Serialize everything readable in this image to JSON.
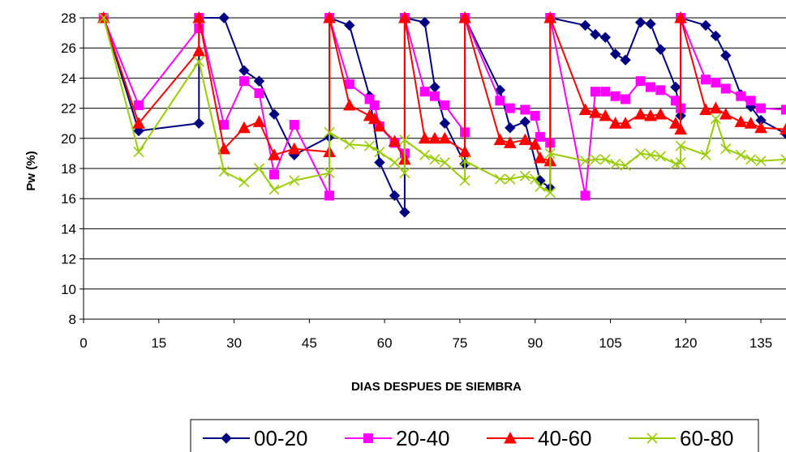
{
  "chart_data": {
    "type": "line",
    "title": "",
    "xlabel": "DIAS DESPUES DE SIEMBRA",
    "ylabel": "Pw (%)",
    "xlim": [
      0,
      140
    ],
    "ylim": [
      8,
      28
    ],
    "xticks": [
      "0",
      "15",
      "30",
      "45",
      "60",
      "75",
      "90",
      "105",
      "120",
      "135"
    ],
    "yticks": [
      "8",
      "10",
      "12",
      "14",
      "16",
      "18",
      "20",
      "22",
      "24",
      "26",
      "28"
    ],
    "grid": "horizontal",
    "legend_position": "bottom",
    "series": [
      {
        "name": "00-20",
        "color": "#000080",
        "marker": "diamond",
        "points": [
          [
            4,
            28
          ],
          [
            11,
            20.5
          ],
          [
            23,
            21
          ],
          [
            23,
            28
          ],
          [
            28,
            28
          ],
          [
            32,
            24.5
          ],
          [
            35,
            23.8
          ],
          [
            38,
            21.6
          ],
          [
            42,
            18.9
          ],
          [
            49,
            20.1
          ],
          [
            49,
            28
          ],
          [
            53,
            27.5
          ],
          [
            57,
            22.8
          ],
          [
            59,
            18.4
          ],
          [
            62,
            16.2
          ],
          [
            64,
            15.1
          ],
          [
            64,
            28
          ],
          [
            68,
            27.7
          ],
          [
            70,
            23.4
          ],
          [
            72,
            21
          ],
          [
            76,
            18.3
          ],
          [
            76,
            28
          ],
          [
            83,
            23.2
          ],
          [
            85,
            20.7
          ],
          [
            88,
            21.1
          ],
          [
            91,
            17.2
          ],
          [
            93,
            16.7
          ],
          [
            93,
            28
          ],
          [
            100,
            27.5
          ],
          [
            102,
            26.9
          ],
          [
            104,
            26.7
          ],
          [
            106,
            25.6
          ],
          [
            108,
            25.2
          ],
          [
            111,
            27.7
          ],
          [
            113,
            27.6
          ],
          [
            115,
            25.9
          ],
          [
            118,
            23.4
          ],
          [
            119,
            21.5
          ],
          [
            119,
            28
          ],
          [
            124,
            27.5
          ],
          [
            126,
            26.8
          ],
          [
            128,
            25.5
          ],
          [
            131,
            22.9
          ],
          [
            133,
            22.1
          ],
          [
            135,
            21.2
          ],
          [
            140,
            20.3
          ]
        ]
      },
      {
        "name": "20-40",
        "color": "#ff00ff",
        "marker": "square",
        "points": [
          [
            4,
            28
          ],
          [
            11,
            22.2
          ],
          [
            23,
            27.3
          ],
          [
            23,
            28
          ],
          [
            28,
            20.9
          ],
          [
            32,
            23.8
          ],
          [
            35,
            23
          ],
          [
            38,
            17.6
          ],
          [
            42,
            20.9
          ],
          [
            49,
            16.2
          ],
          [
            49,
            28
          ],
          [
            53,
            23.6
          ],
          [
            57,
            22.6
          ],
          [
            58,
            22.2
          ],
          [
            59,
            20.8
          ],
          [
            62,
            19.7
          ],
          [
            64,
            19
          ],
          [
            64,
            28
          ],
          [
            68,
            23.1
          ],
          [
            70,
            22.8
          ],
          [
            72,
            22.2
          ],
          [
            76,
            20.4
          ],
          [
            76,
            28
          ],
          [
            83,
            22.5
          ],
          [
            85,
            22
          ],
          [
            88,
            21.9
          ],
          [
            90,
            21.5
          ],
          [
            91,
            20.1
          ],
          [
            93,
            19.7
          ],
          [
            93,
            28
          ],
          [
            100,
            16.2
          ],
          [
            102,
            23.1
          ],
          [
            104,
            23.1
          ],
          [
            106,
            22.8
          ],
          [
            108,
            22.6
          ],
          [
            111,
            23.8
          ],
          [
            113,
            23.4
          ],
          [
            115,
            23.2
          ],
          [
            118,
            22.5
          ],
          [
            119,
            22
          ],
          [
            119,
            28
          ],
          [
            124,
            23.9
          ],
          [
            126,
            23.7
          ],
          [
            128,
            23.3
          ],
          [
            131,
            22.8
          ],
          [
            133,
            22.5
          ],
          [
            135,
            22
          ],
          [
            140,
            21.9
          ]
        ]
      },
      {
        "name": "40-60",
        "color": "#ff0000",
        "marker": "triangle",
        "points": [
          [
            4,
            28
          ],
          [
            11,
            21
          ],
          [
            23,
            25.8
          ],
          [
            23,
            28
          ],
          [
            28,
            19.3
          ],
          [
            32,
            20.7
          ],
          [
            35,
            21.1
          ],
          [
            38,
            18.9
          ],
          [
            42,
            19.3
          ],
          [
            49,
            19.1
          ],
          [
            49,
            28
          ],
          [
            53,
            22.2
          ],
          [
            57,
            21.5
          ],
          [
            58,
            21.3
          ],
          [
            59,
            20.8
          ],
          [
            62,
            19.8
          ],
          [
            64,
            18.6
          ],
          [
            64,
            28
          ],
          [
            68,
            20
          ],
          [
            70,
            20
          ],
          [
            72,
            20
          ],
          [
            76,
            19.1
          ],
          [
            76,
            28
          ],
          [
            83,
            19.9
          ],
          [
            85,
            19.7
          ],
          [
            88,
            19.9
          ],
          [
            90,
            19.6
          ],
          [
            91,
            18.7
          ],
          [
            93,
            18.5
          ],
          [
            93,
            28
          ],
          [
            100,
            21.9
          ],
          [
            102,
            21.7
          ],
          [
            104,
            21.5
          ],
          [
            106,
            21
          ],
          [
            108,
            21
          ],
          [
            111,
            21.6
          ],
          [
            113,
            21.5
          ],
          [
            115,
            21.6
          ],
          [
            118,
            21
          ],
          [
            119,
            20.6
          ],
          [
            119,
            28
          ],
          [
            124,
            21.9
          ],
          [
            126,
            22
          ],
          [
            128,
            21.6
          ],
          [
            131,
            21.1
          ],
          [
            133,
            21
          ],
          [
            135,
            20.7
          ],
          [
            140,
            20.6
          ]
        ]
      },
      {
        "name": "60-80",
        "color": "#99cc00",
        "marker": "x",
        "points": [
          [
            4,
            28
          ],
          [
            11,
            19.1
          ],
          [
            23,
            25.1
          ],
          [
            28,
            17.8
          ],
          [
            32,
            17.1
          ],
          [
            35,
            18
          ],
          [
            38,
            16.6
          ],
          [
            42,
            17.2
          ],
          [
            49,
            17.7
          ],
          [
            49,
            20.4
          ],
          [
            53,
            19.6
          ],
          [
            57,
            19.5
          ],
          [
            59,
            19.1
          ],
          [
            62,
            18.4
          ],
          [
            64,
            17.7
          ],
          [
            64,
            19.9
          ],
          [
            68,
            18.9
          ],
          [
            70,
            18.6
          ],
          [
            72,
            18.4
          ],
          [
            76,
            17.2
          ],
          [
            76,
            18.5
          ],
          [
            83,
            17.3
          ],
          [
            85,
            17.3
          ],
          [
            88,
            17.5
          ],
          [
            90,
            17.3
          ],
          [
            91,
            16.8
          ],
          [
            93,
            16.4
          ],
          [
            93,
            19
          ],
          [
            100,
            18.5
          ],
          [
            102,
            18.6
          ],
          [
            104,
            18.6
          ],
          [
            106,
            18.3
          ],
          [
            108,
            18.2
          ],
          [
            111,
            19
          ],
          [
            113,
            18.9
          ],
          [
            115,
            18.8
          ],
          [
            118,
            18.3
          ],
          [
            119,
            18.4
          ],
          [
            119,
            19.5
          ],
          [
            124,
            18.9
          ],
          [
            126,
            21.3
          ],
          [
            128,
            19.3
          ],
          [
            131,
            18.9
          ],
          [
            133,
            18.6
          ],
          [
            135,
            18.5
          ],
          [
            140,
            18.6
          ]
        ]
      }
    ]
  }
}
